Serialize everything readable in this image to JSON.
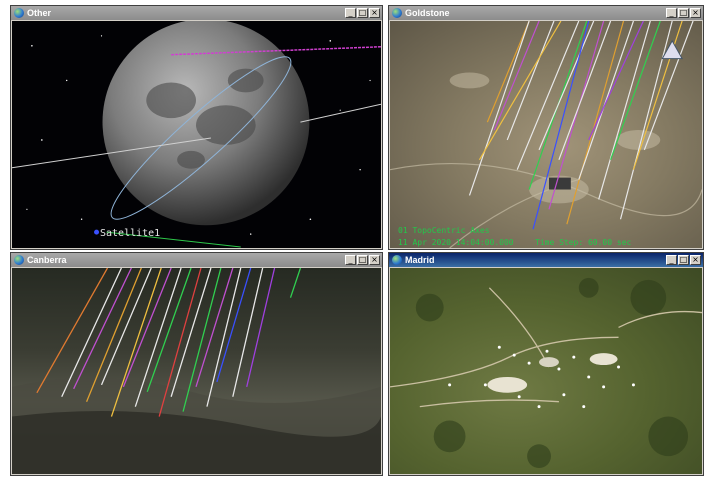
{
  "windows": [
    {
      "id": "other",
      "title": "Other",
      "min": "_",
      "max": "□",
      "close": "×"
    },
    {
      "id": "goldstone",
      "title": "Goldstone",
      "min": "_",
      "max": "□",
      "close": "×"
    },
    {
      "id": "canberra",
      "title": "Canberra",
      "min": "_",
      "max": "□",
      "close": "×"
    },
    {
      "id": "madrid",
      "title": "Madrid",
      "min": "_",
      "max": "□",
      "close": "×"
    }
  ],
  "other_view": {
    "satellite_label": "Satellite1"
  },
  "goldstone_view": {
    "axes_label": "01 TopoCentric Axes",
    "datetime": "11 Apr 2020 14:04:00.000",
    "time_step": "Time Step: 60.00 sec"
  },
  "colors": {
    "accent_green": "#22c84a",
    "active_title": "#0a246a"
  }
}
